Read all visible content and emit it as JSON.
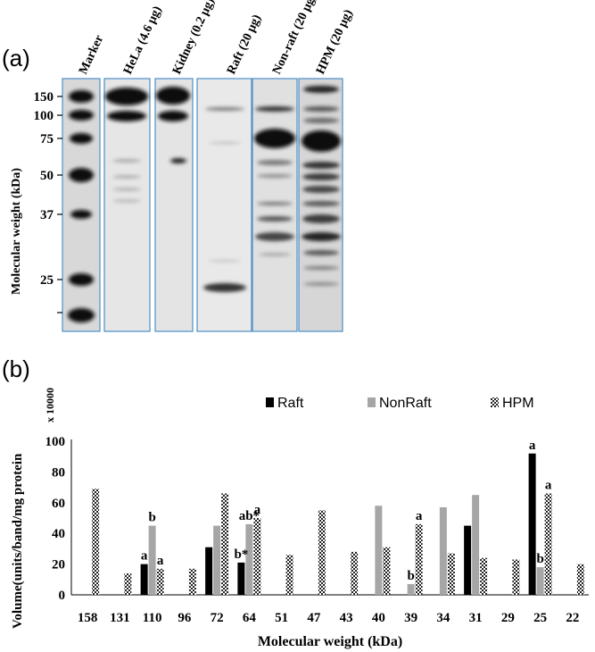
{
  "panel_a": {
    "label": "(a)",
    "ylabel": "Molecular weight (kDa)",
    "lanes": [
      "Marker",
      "HeLa (4.6 µg)",
      "Kidney (0.2 µg)",
      "Raft (20 µg)",
      "Non-raft (20 µg)",
      "HPM (20 µg)"
    ],
    "marker_labels": [
      "150",
      "100",
      "75",
      "50",
      "37",
      "25"
    ]
  },
  "panel_b": {
    "label": "(b)",
    "scale_note": "x 10000"
  },
  "chart_data": {
    "type": "bar",
    "categories": [
      "158",
      "131",
      "110",
      "96",
      "72",
      "64",
      "51",
      "47",
      "43",
      "40",
      "39",
      "34",
      "31",
      "29",
      "25",
      "22"
    ],
    "series": [
      {
        "name": "Raft",
        "color": "#000000",
        "values": [
          0,
          0,
          20,
          0,
          31,
          21,
          0,
          0,
          0,
          0,
          0,
          0,
          45,
          0,
          92,
          0
        ]
      },
      {
        "name": "NonRaft",
        "color": "#a6a6a6",
        "values": [
          0,
          0,
          45,
          0,
          45,
          46,
          0,
          0,
          0,
          58,
          7,
          57,
          65,
          0,
          18,
          0
        ]
      },
      {
        "name": "HPM",
        "color": "checker",
        "values": [
          69,
          14,
          17,
          17,
          66,
          50,
          26,
          55,
          28,
          31,
          46,
          27,
          24,
          23,
          66,
          20
        ]
      }
    ],
    "annotations": [
      {
        "category": "110",
        "series": "Raft",
        "text": "a"
      },
      {
        "category": "110",
        "series": "NonRaft",
        "text": "b"
      },
      {
        "category": "110",
        "series": "HPM",
        "text": "a"
      },
      {
        "category": "64",
        "series": "Raft",
        "text": "b*"
      },
      {
        "category": "64",
        "series": "NonRaft",
        "text": "ab*"
      },
      {
        "category": "64",
        "series": "HPM",
        "text": "a"
      },
      {
        "category": "39",
        "series": "NonRaft",
        "text": "b"
      },
      {
        "category": "39",
        "series": "HPM",
        "text": "a"
      },
      {
        "category": "25",
        "series": "Raft",
        "text": "a"
      },
      {
        "category": "25",
        "series": "NonRaft",
        "text": "b"
      },
      {
        "category": "25",
        "series": "HPM",
        "text": "a"
      }
    ],
    "xlabel": "Molecular weight (kDa)",
    "ylabel": "Volume(units/band/mg protein",
    "ylim": [
      0,
      100
    ],
    "yticks": [
      0,
      20,
      40,
      60,
      80,
      100
    ],
    "legend_position": "top-right",
    "grid": false
  }
}
